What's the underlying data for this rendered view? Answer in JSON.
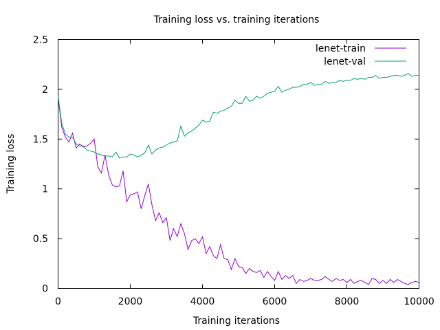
{
  "chart_data": {
    "type": "line",
    "title": "Training loss vs. training iterations",
    "xlabel": "Training iterations",
    "ylabel": "Training loss",
    "xlim": [
      0,
      10000
    ],
    "ylim": [
      0,
      2.5
    ],
    "xticks": [
      0,
      2000,
      4000,
      6000,
      8000,
      10000
    ],
    "yticks": [
      0,
      0.5,
      1,
      1.5,
      2,
      2.5
    ],
    "xtick_labels": [
      "0",
      "2000",
      "4000",
      "6000",
      "8000",
      "10000"
    ],
    "ytick_labels": [
      "0",
      "0.5",
      "1",
      "1.5",
      "2",
      "2.5"
    ],
    "grid": false,
    "legend_position": "top-right",
    "x": [
      0,
      100,
      200,
      300,
      400,
      500,
      600,
      700,
      800,
      900,
      1000,
      1100,
      1200,
      1300,
      1400,
      1500,
      1600,
      1700,
      1800,
      1900,
      2000,
      2100,
      2200,
      2300,
      2400,
      2500,
      2600,
      2700,
      2800,
      2900,
      3000,
      3100,
      3200,
      3300,
      3400,
      3500,
      3600,
      3700,
      3800,
      3900,
      4000,
      4100,
      4200,
      4300,
      4400,
      4500,
      4600,
      4700,
      4800,
      4900,
      5000,
      5100,
      5200,
      5300,
      5400,
      5500,
      5600,
      5700,
      5800,
      5900,
      6000,
      6100,
      6200,
      6300,
      6400,
      6500,
      6600,
      6700,
      6800,
      6900,
      7000,
      7100,
      7200,
      7300,
      7400,
      7500,
      7600,
      7700,
      7800,
      7900,
      8000,
      8100,
      8200,
      8300,
      8400,
      8500,
      8600,
      8700,
      8800,
      8900,
      9000,
      9100,
      9200,
      9300,
      9400,
      9500,
      9600,
      9700,
      9800,
      9900,
      10000
    ],
    "series": [
      {
        "name": "lenet-train",
        "color": "#9400d3",
        "values": [
          1.92,
          1.62,
          1.52,
          1.47,
          1.56,
          1.41,
          1.45,
          1.42,
          1.43,
          1.46,
          1.5,
          1.22,
          1.16,
          1.34,
          1.14,
          1.04,
          1.02,
          1.03,
          1.18,
          0.87,
          0.94,
          0.95,
          0.97,
          0.8,
          0.93,
          1.05,
          0.84,
          0.68,
          0.76,
          0.66,
          0.71,
          0.48,
          0.6,
          0.52,
          0.65,
          0.55,
          0.39,
          0.48,
          0.5,
          0.45,
          0.52,
          0.35,
          0.42,
          0.33,
          0.3,
          0.44,
          0.3,
          0.29,
          0.19,
          0.3,
          0.22,
          0.21,
          0.15,
          0.2,
          0.17,
          0.16,
          0.18,
          0.11,
          0.17,
          0.12,
          0.08,
          0.17,
          0.09,
          0.13,
          0.1,
          0.13,
          0.05,
          0.09,
          0.07,
          0.08,
          0.1,
          0.08,
          0.08,
          0.09,
          0.12,
          0.09,
          0.07,
          0.1,
          0.08,
          0.09,
          0.06,
          0.09,
          0.05,
          0.07,
          0.08,
          0.06,
          0.04,
          0.1,
          0.09,
          0.05,
          0.08,
          0.05,
          0.09,
          0.06,
          0.09,
          0.07,
          0.05,
          0.04,
          0.06,
          0.07,
          0.06
        ]
      },
      {
        "name": "lenet-val",
        "color": "#009e73",
        "values": [
          1.93,
          1.66,
          1.55,
          1.52,
          1.52,
          1.45,
          1.43,
          1.43,
          1.39,
          1.38,
          1.37,
          1.35,
          1.34,
          1.33,
          1.33,
          1.32,
          1.37,
          1.31,
          1.32,
          1.32,
          1.35,
          1.34,
          1.32,
          1.34,
          1.36,
          1.44,
          1.35,
          1.39,
          1.41,
          1.42,
          1.44,
          1.46,
          1.47,
          1.48,
          1.63,
          1.53,
          1.56,
          1.58,
          1.61,
          1.64,
          1.69,
          1.67,
          1.68,
          1.77,
          1.76,
          1.78,
          1.79,
          1.81,
          1.83,
          1.89,
          1.86,
          1.86,
          1.93,
          1.88,
          1.89,
          1.93,
          1.91,
          1.93,
          1.96,
          1.97,
          1.98,
          2.03,
          1.97,
          1.99,
          2.0,
          2.02,
          2.02,
          2.03,
          2.05,
          2.05,
          2.07,
          2.04,
          2.05,
          2.05,
          2.08,
          2.06,
          2.07,
          2.07,
          2.09,
          2.08,
          2.09,
          2.09,
          2.11,
          2.1,
          2.11,
          2.1,
          2.12,
          2.12,
          2.14,
          2.11,
          2.12,
          2.12,
          2.13,
          2.14,
          2.14,
          2.13,
          2.14,
          2.16,
          2.13,
          2.14,
          2.14
        ]
      }
    ]
  }
}
